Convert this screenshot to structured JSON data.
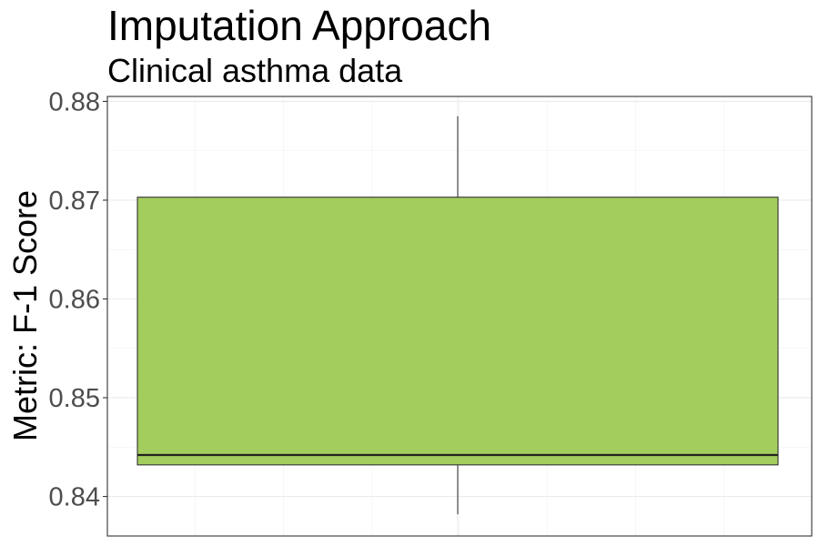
{
  "chart_data": {
    "type": "box",
    "title": "Imputation Approach",
    "subtitle": "Clinical asthma data",
    "xlabel": "",
    "ylabel": "Metric: F-1 Score",
    "ylim": [
      0.836,
      0.8805
    ],
    "yticks": [
      0.84,
      0.85,
      0.86,
      0.87,
      0.88
    ],
    "yticklabels": [
      "0.84",
      "0.85",
      "0.86",
      "0.87",
      "0.88"
    ],
    "grid": true,
    "legend": "none",
    "boxes": [
      {
        "min": 0.8382,
        "q1": 0.8432,
        "median": 0.8442,
        "q3": 0.8703,
        "max": 0.8785,
        "fill": "#a3cd5d"
      }
    ]
  },
  "colors": {
    "box_fill": "#a3cd5d",
    "box_stroke": "#333333",
    "panel_border": "#333333"
  }
}
